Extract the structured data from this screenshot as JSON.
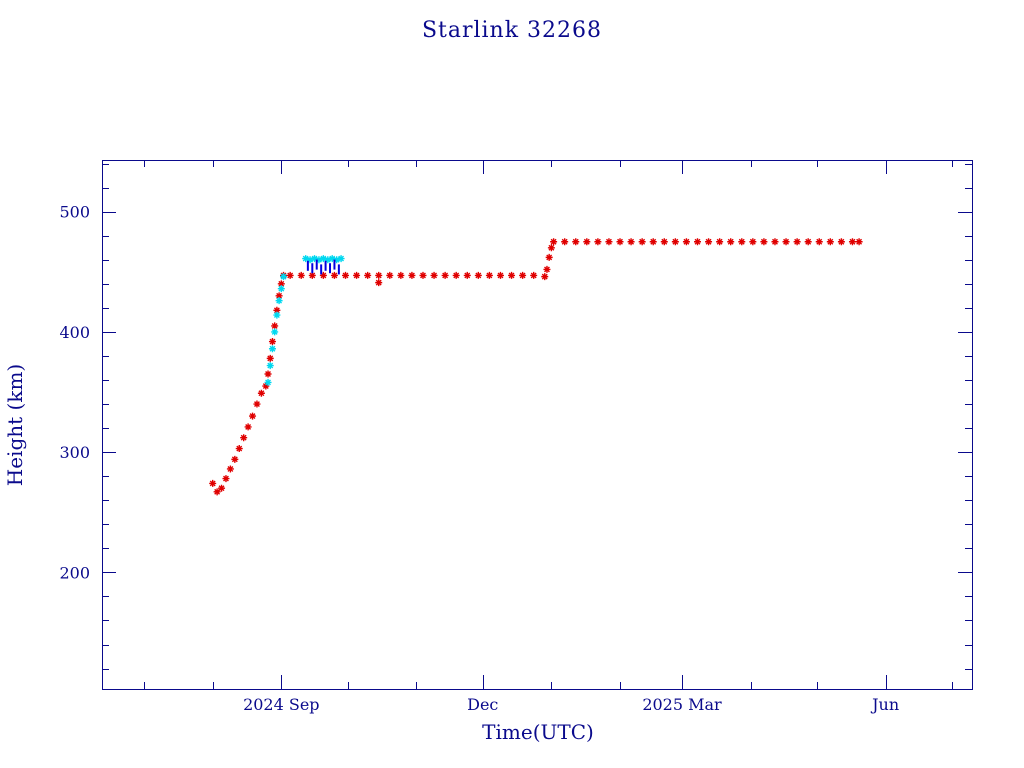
{
  "chart_data": {
    "type": "scatter",
    "title": "Starlink 32268",
    "xlabel": "Time(UTC)",
    "ylabel": "Height (km)",
    "xlim": [
      "2024-06-12",
      "2025-07-10"
    ],
    "ylim": [
      103,
      543
    ],
    "grid": false,
    "x_ticks": [
      {
        "date": "2024-09-01",
        "label": "2024 Sep"
      },
      {
        "date": "2024-12-01",
        "label": "Dec"
      },
      {
        "date": "2025-03-01",
        "label": "2025 Mar"
      },
      {
        "date": "2025-06-01",
        "label": "Jun"
      }
    ],
    "x_minor_ticks": [
      "2024-07-01",
      "2024-08-01",
      "2024-10-01",
      "2024-11-01",
      "2025-01-01",
      "2025-02-01",
      "2025-04-01",
      "2025-05-01",
      "2025-07-01"
    ],
    "y_ticks": [
      200,
      300,
      400,
      500
    ],
    "y_minor_step": 20,
    "series": [
      {
        "color": "#e00000",
        "marker": "star",
        "points": [
          [
            "2024-08-01",
            274
          ],
          [
            "2024-08-03",
            267
          ],
          [
            "2024-08-05",
            270
          ],
          [
            "2024-08-07",
            278
          ],
          [
            "2024-08-09",
            286
          ],
          [
            "2024-08-11",
            294
          ],
          [
            "2024-08-13",
            303
          ],
          [
            "2024-08-15",
            312
          ],
          [
            "2024-08-17",
            321
          ],
          [
            "2024-08-19",
            330
          ],
          [
            "2024-08-21",
            340
          ],
          [
            "2024-08-23",
            349
          ],
          [
            "2024-08-25",
            355
          ],
          [
            "2024-08-26",
            365
          ],
          [
            "2024-08-27",
            378
          ],
          [
            "2024-08-28",
            392
          ],
          [
            "2024-08-29",
            405
          ],
          [
            "2024-08-30",
            418
          ],
          [
            "2024-08-31",
            430
          ],
          [
            "2024-09-01",
            440
          ],
          [
            "2024-09-02",
            447
          ],
          [
            "2024-09-05",
            447
          ],
          [
            "2024-09-10",
            447
          ],
          [
            "2024-09-15",
            447
          ],
          [
            "2024-09-20",
            447
          ],
          [
            "2024-09-25",
            447
          ],
          [
            "2024-09-30",
            447
          ],
          [
            "2024-10-05",
            447
          ],
          [
            "2024-10-10",
            447
          ],
          [
            "2024-10-15",
            447
          ],
          [
            "2024-10-20",
            447
          ],
          [
            "2024-10-25",
            447
          ],
          [
            "2024-10-30",
            447
          ],
          [
            "2024-11-04",
            447
          ],
          [
            "2024-11-09",
            447
          ],
          [
            "2024-11-14",
            447
          ],
          [
            "2024-11-19",
            447
          ],
          [
            "2024-11-24",
            447
          ],
          [
            "2024-11-29",
            447
          ],
          [
            "2024-12-04",
            447
          ],
          [
            "2024-12-09",
            447
          ],
          [
            "2024-12-14",
            447
          ],
          [
            "2024-12-19",
            447
          ],
          [
            "2024-12-24",
            447
          ],
          [
            "2024-12-29",
            446
          ],
          [
            "2024-12-30",
            452
          ],
          [
            "2024-12-31",
            462
          ],
          [
            "2025-01-01",
            470
          ],
          [
            "2025-01-02",
            475
          ],
          [
            "2025-01-07",
            475
          ],
          [
            "2025-01-12",
            475
          ],
          [
            "2025-01-17",
            475
          ],
          [
            "2025-01-22",
            475
          ],
          [
            "2025-01-27",
            475
          ],
          [
            "2025-02-01",
            475
          ],
          [
            "2025-02-06",
            475
          ],
          [
            "2025-02-11",
            475
          ],
          [
            "2025-02-16",
            475
          ],
          [
            "2025-02-21",
            475
          ],
          [
            "2025-02-26",
            475
          ],
          [
            "2025-03-03",
            475
          ],
          [
            "2025-03-08",
            475
          ],
          [
            "2025-03-13",
            475
          ],
          [
            "2025-03-18",
            475
          ],
          [
            "2025-03-23",
            475
          ],
          [
            "2025-03-28",
            475
          ],
          [
            "2025-04-02",
            475
          ],
          [
            "2025-04-07",
            475
          ],
          [
            "2025-04-12",
            475
          ],
          [
            "2025-04-17",
            475
          ],
          [
            "2025-04-22",
            475
          ],
          [
            "2025-04-27",
            475
          ],
          [
            "2025-05-02",
            475
          ],
          [
            "2025-05-07",
            475
          ],
          [
            "2025-05-12",
            475
          ],
          [
            "2025-05-17",
            475
          ],
          [
            "2025-05-20",
            475
          ],
          [
            "2024-10-15",
            441
          ]
        ]
      },
      {
        "color": "#00d8f0",
        "marker": "star",
        "points": [
          [
            "2024-08-26",
            358
          ],
          [
            "2024-08-27",
            372
          ],
          [
            "2024-08-28",
            386
          ],
          [
            "2024-08-29",
            400
          ],
          [
            "2024-08-30",
            414
          ],
          [
            "2024-08-31",
            426
          ],
          [
            "2024-09-01",
            436
          ],
          [
            "2024-09-02",
            446
          ],
          [
            "2024-09-12",
            461
          ],
          [
            "2024-09-14",
            460
          ],
          [
            "2024-09-16",
            461
          ],
          [
            "2024-09-18",
            460
          ],
          [
            "2024-09-20",
            461
          ],
          [
            "2024-09-22",
            460
          ],
          [
            "2024-09-24",
            461
          ],
          [
            "2024-09-26",
            460
          ],
          [
            "2024-09-28",
            461
          ]
        ]
      },
      {
        "color": "#0000e0",
        "marker": "line",
        "points": [
          [
            "2024-09-13",
            455
          ],
          [
            "2024-09-15",
            453
          ],
          [
            "2024-09-17",
            456
          ],
          [
            "2024-09-19",
            452
          ],
          [
            "2024-09-21",
            455
          ],
          [
            "2024-09-23",
            453
          ],
          [
            "2024-09-25",
            456
          ],
          [
            "2024-09-27",
            452
          ]
        ]
      }
    ]
  }
}
